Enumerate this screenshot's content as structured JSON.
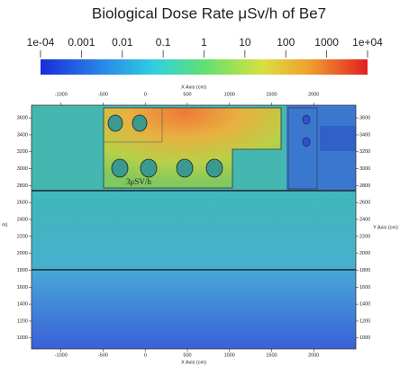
{
  "chart_data": {
    "type": "heatmap",
    "title": "Biological Dose Rate μSv/h of Be7",
    "colorbar": {
      "scale": "log",
      "lim": [
        0.0001,
        10000
      ],
      "ticks": [
        {
          "value": 0.0001,
          "label": "1e-04"
        },
        0.001,
        0.01,
        0.1,
        1,
        10,
        100,
        1000,
        {
          "value": 10000,
          "label": "1e+04"
        }
      ]
    },
    "x_label": "X Axis (cm)",
    "y_label": "Y Axis (cm)",
    "y_label_clipped": "m)",
    "xlim": [
      -1350,
      2500
    ],
    "xticks": [
      -1000,
      -500,
      0,
      500,
      1000,
      1500,
      2000
    ],
    "ylim": [
      870,
      3750
    ],
    "yticks": [
      1000,
      1200,
      1400,
      1600,
      1800,
      2000,
      2200,
      2400,
      2600,
      2800,
      3000,
      3200,
      3400,
      3600
    ],
    "annotation": "3μSV/h"
  }
}
